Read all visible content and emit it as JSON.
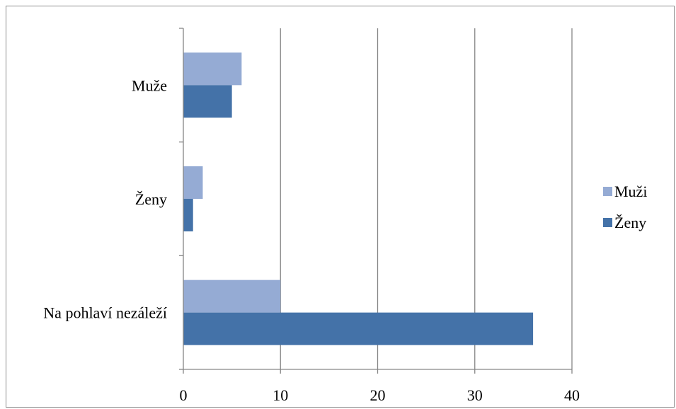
{
  "chart_data": {
    "type": "bar",
    "orientation": "horizontal",
    "categories": [
      "Muže",
      "Ženy",
      "Na pohlaví nezáleží"
    ],
    "series": [
      {
        "name": "Muži",
        "color": "#95abd4",
        "values": [
          6,
          2,
          10
        ]
      },
      {
        "name": "Ženy",
        "color": "#4472a8",
        "values": [
          5,
          1,
          36
        ]
      }
    ],
    "xlim": [
      0,
      40
    ],
    "x_ticks": [
      0,
      10,
      20,
      30,
      40
    ],
    "grid": "vertical",
    "legend": "right"
  }
}
